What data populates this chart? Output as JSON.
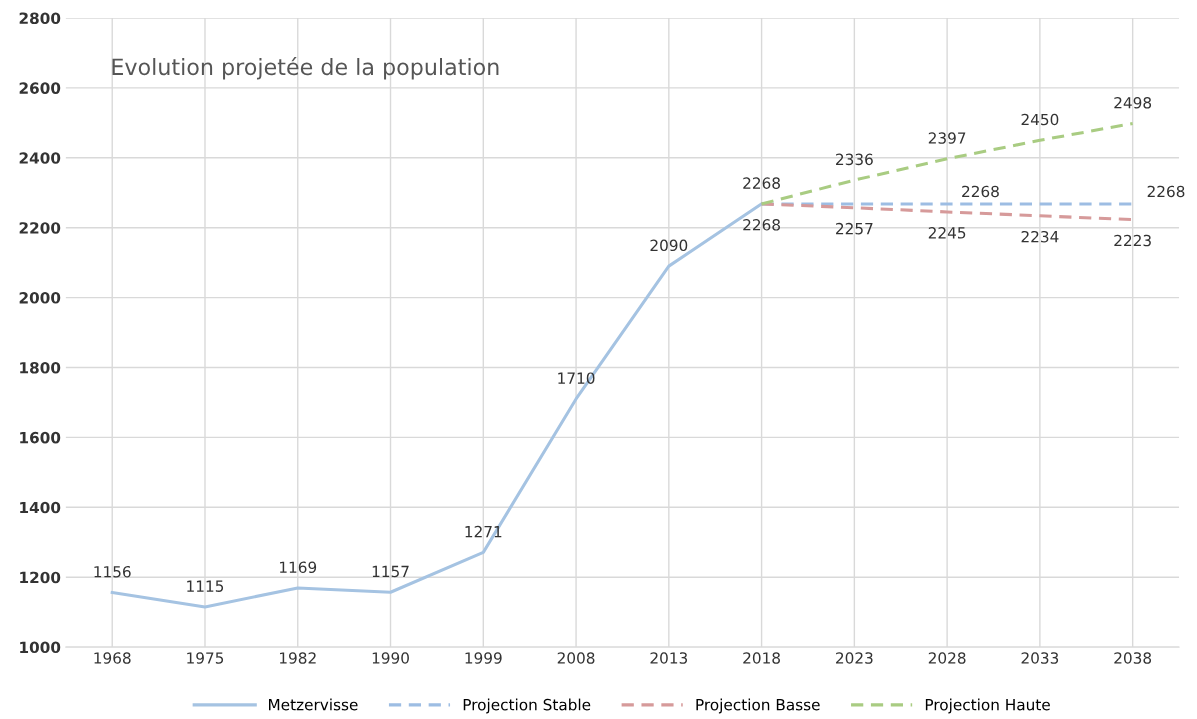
{
  "chart_data": {
    "type": "line",
    "title": "Evolution projetée de la population",
    "categories": [
      "1968",
      "1975",
      "1982",
      "1990",
      "1999",
      "2008",
      "2013",
      "2018",
      "2023",
      "2028",
      "2033",
      "2038"
    ],
    "series": [
      {
        "name": "Metzervisse",
        "color": "#a5c3e2",
        "line_style": "solid",
        "values": [
          1156,
          1115,
          1169,
          1157,
          1271,
          1710,
          2090,
          2268,
          null,
          null,
          null,
          null
        ],
        "value_labels": [
          "1156",
          "1115",
          "1169",
          "1157",
          "1271",
          "1710",
          "2090",
          "2268",
          null,
          null,
          null,
          null
        ]
      },
      {
        "name": "Projection Stable",
        "color": "#9dbde3",
        "line_style": "dashed",
        "values": [
          null,
          null,
          null,
          null,
          null,
          null,
          null,
          2268,
          2268,
          2268,
          2268,
          2268
        ],
        "value_labels": [
          null,
          null,
          null,
          null,
          null,
          null,
          null,
          null,
          null,
          "2268",
          null,
          "2268"
        ]
      },
      {
        "name": "Projection Basse",
        "color": "#d69a9a",
        "line_style": "dashed",
        "values": [
          null,
          null,
          null,
          null,
          null,
          null,
          null,
          2268,
          2257,
          2245,
          2234,
          2223
        ],
        "value_labels": [
          null,
          null,
          null,
          null,
          null,
          null,
          null,
          "2268",
          "2257",
          "2245",
          "2234",
          "2223"
        ]
      },
      {
        "name": "Projection Haute",
        "color": "#a9cc82",
        "line_style": "dashed",
        "values": [
          null,
          null,
          null,
          null,
          null,
          null,
          null,
          2268,
          2336,
          2397,
          2450,
          2498
        ],
        "value_labels": [
          null,
          null,
          null,
          null,
          null,
          null,
          null,
          null,
          "2336",
          "2397",
          "2450",
          "2498"
        ]
      }
    ],
    "ylim": [
      1000,
      2800
    ],
    "yticks": [
      1000,
      1200,
      1400,
      1600,
      1800,
      2000,
      2200,
      2400,
      2600,
      2800
    ],
    "grid": true,
    "legend": "bottom",
    "marker": "none"
  }
}
